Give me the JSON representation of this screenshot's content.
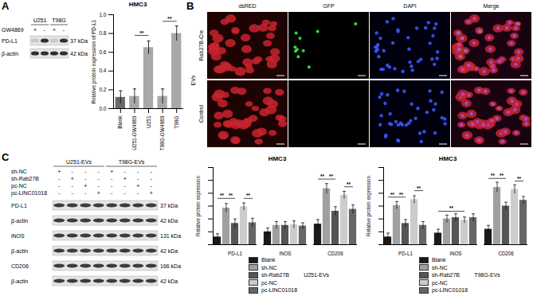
{
  "panels": [
    "A",
    "B",
    "C"
  ],
  "blot_A": {
    "groups": [
      "U251",
      "T98G"
    ],
    "treatment": "GW4869",
    "lanes": [
      "+",
      "-",
      "+",
      "-"
    ],
    "rows": [
      {
        "name": "PD-L1",
        "size": "37 kDa"
      },
      {
        "name": "β-actin",
        "size": "42 kDa"
      }
    ]
  },
  "microscopy": {
    "group": "EVs",
    "rows": [
      "Rab27B-Cre",
      "Control"
    ],
    "columns": [
      "dsRED",
      "GFP",
      "DAPI",
      "Merge"
    ]
  },
  "blot_C": {
    "groups": [
      "U251-EVs",
      "T98G-EVs"
    ],
    "treatments": [
      {
        "name": "sh-NC",
        "lanes": [
          "+",
          "-",
          "-",
          "-",
          "+",
          "-",
          "-",
          "-"
        ]
      },
      {
        "name": "sh-Rab27B",
        "lanes": [
          "-",
          "+",
          "-",
          "-",
          "-",
          "+",
          "-",
          "-"
        ]
      },
      {
        "name": "pc-NC",
        "lanes": [
          "-",
          "-",
          "+",
          "-",
          "-",
          "-",
          "+",
          "-"
        ]
      },
      {
        "name": "pc-LINC01018",
        "lanes": [
          "-",
          "-",
          "-",
          "+",
          "-",
          "-",
          "-",
          "+"
        ]
      }
    ],
    "rows": [
      {
        "name": "PD-L1",
        "size": "37 kDa"
      },
      {
        "name": "β-actin",
        "size": "42 kDa"
      },
      {
        "name": "iNOS",
        "size": "131 kDa"
      },
      {
        "name": "β-actin",
        "size": "42 kDa"
      },
      {
        "name": "CD206",
        "size": "166 kDa"
      },
      {
        "name": "β-actin",
        "size": "42 kDa"
      }
    ]
  },
  "chart_data": [
    {
      "type": "bar",
      "title": "HMC3",
      "y_label": "Relative protein expression of PD-L1",
      "categories": [
        "Blank",
        "U251-GW4869",
        "U251",
        "T98G-GW4869",
        "T98G"
      ],
      "values": [
        0.12,
        0.13,
        0.65,
        0.13,
        0.8
      ],
      "errors": [
        0.07,
        0.08,
        0.07,
        0.08,
        0.08
      ],
      "colors": [
        "#6a6a6a",
        "#a8a8a8",
        "#a8a8a8",
        "#a8a8a8",
        "#a8a8a8"
      ],
      "ylim": [
        0,
        1
      ],
      "yticks": [
        {
          "value": 0,
          "label": "0.0"
        },
        0.2,
        0.4,
        0.6,
        0.8,
        {
          "value": 1,
          "label": "1.0"
        }
      ],
      "brackets": [
        {
          "from": "U251-GW4869",
          "to": "U251",
          "y": 0.78,
          "label": "**"
        },
        {
          "from": "T98G-GW4869",
          "to": "T98G",
          "y": 0.93,
          "label": "**"
        }
      ]
    },
    {
      "type": "bar",
      "title": "HMC3",
      "y_label": "Relative protein expression",
      "legend_title": "U251-EVs",
      "legend": "bottom",
      "tick_labels": "x",
      "categories": [
        "PD-L1",
        "iNOS",
        "CD206"
      ],
      "series": [
        {
          "name": "Blank",
          "color": "#1a1a1a",
          "values": [
            0.12,
            0.2,
            0.32
          ],
          "errors": [
            0.05,
            0.06,
            0.07
          ]
        },
        {
          "name": "sh-NC",
          "color": "#a0a0a0",
          "values": [
            0.57,
            0.3,
            0.87
          ],
          "errors": [
            0.07,
            0.06,
            0.08
          ]
        },
        {
          "name": "sh-Rab27B",
          "color": "#555555",
          "values": [
            0.33,
            0.3,
            0.52
          ],
          "errors": [
            0.07,
            0.06,
            0.07
          ]
        },
        {
          "name": "pc-NC",
          "color": "#cccccc",
          "values": [
            0.59,
            0.31,
            0.77
          ],
          "errors": [
            0.06,
            0.06,
            0.06
          ]
        },
        {
          "name": "pc-LINC01018",
          "color": "#666666",
          "values": [
            0.34,
            0.29,
            0.55
          ],
          "errors": [
            0.07,
            0.05,
            0.07
          ]
        }
      ],
      "ylim": [
        0,
        1.2
      ],
      "yticks": [
        0,
        0.2,
        0.4,
        0.6,
        0.8,
        1,
        1.2
      ],
      "brackets": [
        {
          "category": "PD-L1",
          "from": "Blank",
          "to": "sh-NC",
          "y": 0.72,
          "label": "**"
        },
        {
          "category": "PD-L1",
          "from": "sh-NC",
          "to": "sh-Rab27B",
          "y": 0.72,
          "label": "**"
        },
        {
          "category": "PD-L1",
          "from": "pc-NC",
          "to": "pc-LINC01018",
          "y": 0.72,
          "label": "**"
        },
        {
          "category": "CD206",
          "from": "Blank",
          "to": "sh-NC",
          "y": 1.02,
          "label": "**"
        },
        {
          "category": "CD206",
          "from": "sh-NC",
          "to": "sh-Rab27B",
          "y": 1.02,
          "label": "**"
        },
        {
          "category": "CD206",
          "from": "pc-NC",
          "to": "pc-LINC01018",
          "y": 0.9,
          "label": "**"
        }
      ]
    },
    {
      "type": "bar",
      "title": "HMC3",
      "y_label": "Relative protein expression",
      "legend_title": "T98G-EVs",
      "legend": "bottom",
      "tick_labels": "x",
      "categories": [
        "PD-L1",
        "iNOS",
        "CD206"
      ],
      "series": [
        {
          "name": "Blank",
          "color": "#1a1a1a",
          "values": [
            0.12,
            0.18,
            0.24
          ],
          "errors": [
            0.06,
            0.06,
            0.06
          ]
        },
        {
          "name": "sh-NC",
          "color": "#a0a0a0",
          "values": [
            0.61,
            0.4,
            0.89
          ],
          "errors": [
            0.06,
            0.06,
            0.08
          ]
        },
        {
          "name": "sh-Rab27B",
          "color": "#555555",
          "values": [
            0.33,
            0.42,
            0.6
          ],
          "errors": [
            0.06,
            0.06,
            0.06
          ]
        },
        {
          "name": "pc-NC",
          "color": "#cccccc",
          "values": [
            0.7,
            0.38,
            0.86
          ],
          "errors": [
            0.06,
            0.05,
            0.07
          ]
        },
        {
          "name": "pc-LINC01018",
          "color": "#666666",
          "values": [
            0.3,
            0.42,
            0.69
          ],
          "errors": [
            0.06,
            0.06,
            0.06
          ]
        }
      ],
      "ylim": [
        0,
        1.2
      ],
      "yticks": [
        0,
        0.2,
        0.4,
        0.6,
        0.8,
        1,
        1.2
      ],
      "brackets": [
        {
          "category": "PD-L1",
          "from": "Blank",
          "to": "sh-NC",
          "y": 0.74,
          "label": "**"
        },
        {
          "category": "PD-L1",
          "from": "sh-NC",
          "to": "sh-Rab27B",
          "y": 0.74,
          "label": "**"
        },
        {
          "category": "PD-L1",
          "from": "pc-NC",
          "to": "pc-LINC01018",
          "y": 0.84,
          "label": "**"
        },
        {
          "category": "iNOS",
          "from": "Blank",
          "to": "pc-NC",
          "y": 0.52,
          "label": "**"
        },
        {
          "category": "CD206",
          "from": "Blank",
          "to": "sh-NC",
          "y": 1.03,
          "label": "**"
        },
        {
          "category": "CD206",
          "from": "sh-NC",
          "to": "sh-Rab27B",
          "y": 1.03,
          "label": "**"
        },
        {
          "category": "CD206",
          "from": "pc-NC",
          "to": "pc-LINC01018",
          "y": 0.99,
          "label": "**"
        }
      ]
    }
  ]
}
